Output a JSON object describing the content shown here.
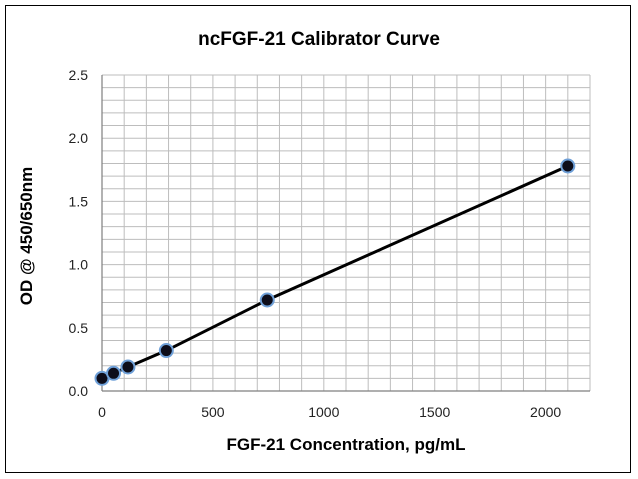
{
  "chart_data": {
    "type": "scatter",
    "title": "ncFGF-21 Calibrator Curve",
    "xlabel": "FGF-21 Concentration, pg/mL",
    "ylabel": "OD @ 450/650nm",
    "xlim": [
      0,
      2200
    ],
    "ylim": [
      0,
      2.5
    ],
    "x_ticks": [
      0,
      500,
      1000,
      1500,
      2000
    ],
    "x_tick_labels": [
      "0",
      "500",
      "1000",
      "1500",
      "2000"
    ],
    "y_ticks": [
      0,
      0.5,
      1.0,
      1.5,
      2.0,
      2.5
    ],
    "y_tick_labels": [
      "0.0",
      "0.5",
      "1.0",
      "1.5",
      "2.0",
      "2.5"
    ],
    "grid": true,
    "line": true,
    "marker_fill": "#0d0d1a",
    "marker_edge": "#6fa0d8",
    "line_color": "#000000",
    "points": [
      {
        "x": 0,
        "y": 0.1
      },
      {
        "x": 52,
        "y": 0.14
      },
      {
        "x": 117,
        "y": 0.19
      },
      {
        "x": 290,
        "y": 0.32
      },
      {
        "x": 745,
        "y": 0.72
      },
      {
        "x": 2100,
        "y": 1.78
      }
    ]
  }
}
